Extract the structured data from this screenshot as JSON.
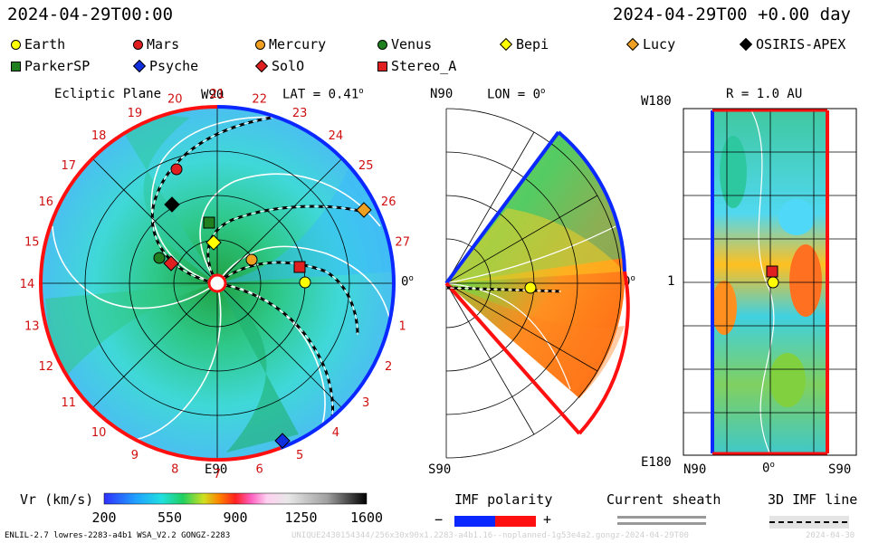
{
  "header": {
    "datetime_left": "2024-04-29T00:00",
    "datetime_right": "2024-04-29T00 +0.00 day"
  },
  "legend": [
    {
      "name": "Earth",
      "shape": "circle",
      "color": "#ffff00"
    },
    {
      "name": "Mars",
      "shape": "circle",
      "color": "#e02020"
    },
    {
      "name": "Mercury",
      "shape": "circle",
      "color": "#f0a020"
    },
    {
      "name": "Venus",
      "shape": "circle",
      "color": "#208020"
    },
    {
      "name": "Bepi",
      "shape": "diamond",
      "color": "#ffff00"
    },
    {
      "name": "Lucy",
      "shape": "diamond",
      "color": "#f0a020"
    },
    {
      "name": "OSIRIS-APEX",
      "shape": "diamond",
      "color": "#000000"
    },
    {
      "name": "ParkerSP",
      "shape": "square",
      "color": "#208020"
    },
    {
      "name": "Psyche",
      "shape": "diamond",
      "color": "#1030e0"
    },
    {
      "name": "SolO",
      "shape": "diamond",
      "color": "#e02020"
    },
    {
      "name": "Stereo_A",
      "shape": "square",
      "color": "#e02020"
    }
  ],
  "panel1": {
    "title": "Ecliptic Plane",
    "top_label": "W90",
    "bottom_label": "E90",
    "right_label": "0",
    "lat_label": "LAT = 0.41",
    "deg": "o",
    "ticks": [
      "1",
      "2",
      "3",
      "4",
      "5",
      "6",
      "7",
      "8",
      "9",
      "10",
      "11",
      "12",
      "13",
      "14",
      "15",
      "16",
      "17",
      "18",
      "19",
      "20",
      "21",
      "22",
      "23",
      "24",
      "25",
      "26",
      "27"
    ]
  },
  "panel2": {
    "title": "LON = 0",
    "deg": "o",
    "top_label": "N90",
    "bottom_label": "S90",
    "right_label": "0"
  },
  "panel3": {
    "title": "R = 1.0 AU",
    "top_left": "W180",
    "mid_left": "1",
    "bottom_left": "E180",
    "x_left": "N90",
    "x_mid": "0",
    "x_right": "S90",
    "deg": "o"
  },
  "colorbar": {
    "label": "Vr (km/s)",
    "ticks": [
      "200",
      "550",
      "900",
      "1250",
      "1600"
    ],
    "range": [
      200,
      1600
    ]
  },
  "imf": {
    "title": "IMF polarity",
    "minus": "−",
    "plus": "+"
  },
  "sheath": {
    "title": "Current sheath"
  },
  "line3d": {
    "title": "3D IMF line"
  },
  "footer": {
    "left": "ENLIL-2.7 lowres-2283-a4b1 WSA_V2.2 GONGZ-2283",
    "center": "UNIQUE2430154344/256x30x90x1.2283-a4b1.16--noplanned-1g53e4a2.gongz-2024-04-29T00",
    "right": "2024-04-30"
  },
  "colors": {
    "blue_polarity": "#0a28ff",
    "red_polarity": "#ff1010",
    "background_cyan": "#44d8e6",
    "green": "#22c060"
  }
}
